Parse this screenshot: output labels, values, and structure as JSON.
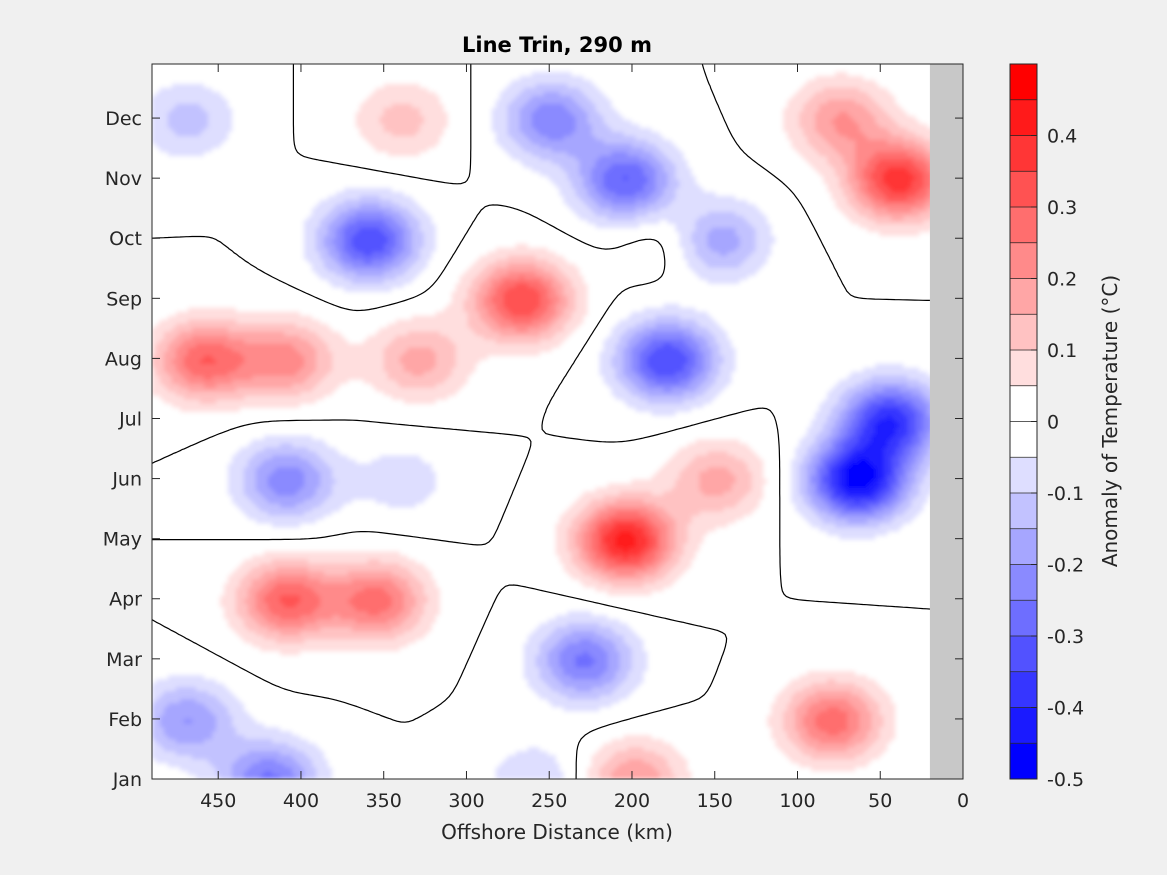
{
  "chart_data": {
    "type": "heatmap",
    "subtype": "filled-contour",
    "title": "Line Trin, 290 m",
    "xlabel": "Offshore Distance (km)",
    "ylabel": "",
    "x_reversed": true,
    "xlim": [
      490,
      0
    ],
    "xticks": [
      450,
      400,
      350,
      300,
      250,
      200,
      150,
      100,
      50,
      0
    ],
    "months": [
      "Jan",
      "Feb",
      "Mar",
      "Apr",
      "May",
      "Jun",
      "Jul",
      "Aug",
      "Sep",
      "Oct",
      "Nov",
      "Dec"
    ],
    "no_data_region_km": [
      20,
      0
    ],
    "no_data_color": "#c8c8c8",
    "zero_contour_color": "#000000",
    "colorbar": {
      "label": "Anomaly of Temperature (°C)",
      "range": [
        -0.5,
        0.5
      ],
      "step": 0.05,
      "tick_labels": [
        "0.4",
        "0.3",
        "0.2",
        "0.1",
        "0",
        "-0.1",
        "-0.2",
        "-0.3",
        "-0.4",
        "-0.5"
      ],
      "colors": [
        "#0000ff",
        "#1a1aff",
        "#3636ff",
        "#5252ff",
        "#6e6eff",
        "#8a8aff",
        "#a6a6ff",
        "#c2c2ff",
        "#dedeff",
        "#ffffff",
        "#ffffff",
        "#ffdede",
        "#ffc2c2",
        "#ffa6a6",
        "#ff8a8a",
        "#ff6e6e",
        "#ff5252",
        "#ff3636",
        "#ff1a1a",
        "#ff0000"
      ]
    },
    "anomaly_centers": [
      {
        "km": 460,
        "month": "Aug",
        "value": 0.29
      },
      {
        "km": 410,
        "month": "Aug",
        "value": 0.22
      },
      {
        "km": 330,
        "month": "Aug",
        "value": 0.17
      },
      {
        "km": 268,
        "month": "Sep",
        "value": 0.35
      },
      {
        "km": 205,
        "month": "May",
        "value": 0.42
      },
      {
        "km": 150,
        "month": "Jun",
        "value": 0.17
      },
      {
        "km": 80,
        "month": "Feb",
        "value": 0.28
      },
      {
        "km": 40,
        "month": "Nov",
        "value": 0.38
      },
      {
        "km": 75,
        "month": "Dec",
        "value": 0.2
      },
      {
        "km": 410,
        "month": "Apr",
        "value": 0.3
      },
      {
        "km": 355,
        "month": "Apr",
        "value": 0.27
      },
      {
        "km": 200,
        "month": "Jan",
        "value": 0.2
      },
      {
        "km": 340,
        "month": "Dec",
        "value": 0.12
      },
      {
        "km": 175,
        "month": "Oct",
        "value": 0.07
      },
      {
        "km": 360,
        "month": "Oct",
        "value": -0.34
      },
      {
        "km": 205,
        "month": "Nov",
        "value": -0.3
      },
      {
        "km": 250,
        "month": "Dec",
        "value": -0.24
      },
      {
        "km": 150,
        "month": "Oct",
        "value": -0.2
      },
      {
        "km": 180,
        "month": "Aug",
        "value": -0.35
      },
      {
        "km": 65,
        "month": "Jun",
        "value": -0.46
      },
      {
        "km": 45,
        "month": "Jul",
        "value": -0.38
      },
      {
        "km": 410,
        "month": "Jun",
        "value": -0.23
      },
      {
        "km": 420,
        "month": "Jan",
        "value": -0.26
      },
      {
        "km": 470,
        "month": "Feb",
        "value": -0.2
      },
      {
        "km": 230,
        "month": "Mar",
        "value": -0.26
      },
      {
        "km": 470,
        "month": "Dec",
        "value": -0.12
      },
      {
        "km": 260,
        "month": "Jan",
        "value": -0.1
      },
      {
        "km": 340,
        "month": "Jun",
        "value": -0.08
      }
    ]
  }
}
